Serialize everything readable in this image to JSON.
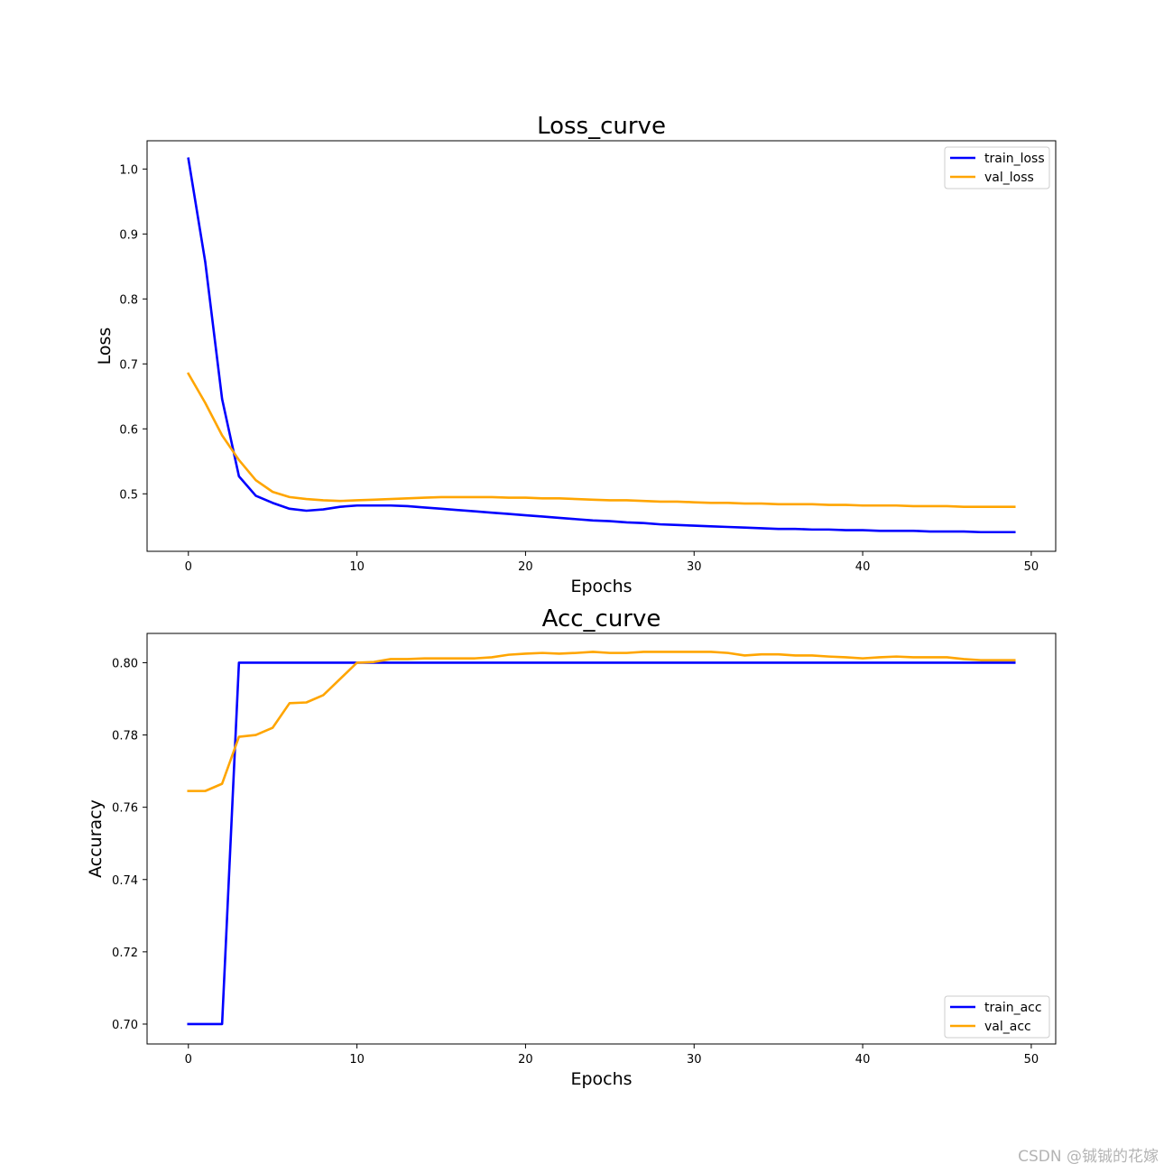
{
  "watermark": "CSDN @铖铖的花嫁",
  "colors": {
    "train": "#0000ff",
    "val": "#ffa500",
    "axes": "#000000",
    "background": "#ffffff"
  },
  "chart_data": [
    {
      "type": "line",
      "title": "Loss_curve",
      "xlabel": "Epochs",
      "ylabel": "Loss",
      "xlim": [
        -2.45,
        51.45
      ],
      "ylim": [
        0.4115,
        1.0435
      ],
      "xticks": [
        0,
        10,
        20,
        30,
        40,
        50
      ],
      "xtick_labels": [
        "0",
        "10",
        "20",
        "30",
        "40",
        "50"
      ],
      "yticks": [
        0.5,
        0.6,
        0.7,
        0.8,
        0.9,
        1.0
      ],
      "ytick_labels": [
        "0.5",
        "0.6",
        "0.7",
        "0.8",
        "0.9",
        "1.0"
      ],
      "grid": false,
      "legend_position": "upper right",
      "x": [
        0,
        1,
        2,
        3,
        4,
        5,
        6,
        7,
        8,
        9,
        10,
        11,
        12,
        13,
        14,
        15,
        16,
        17,
        18,
        19,
        20,
        21,
        22,
        23,
        24,
        25,
        26,
        27,
        28,
        29,
        30,
        31,
        32,
        33,
        34,
        35,
        36,
        37,
        38,
        39,
        40,
        41,
        42,
        43,
        44,
        45,
        46,
        47,
        48,
        49
      ],
      "series": [
        {
          "name": "train_loss",
          "color": "#0000ff",
          "values": [
            1.016,
            0.857,
            0.646,
            0.527,
            0.497,
            0.486,
            0.477,
            0.474,
            0.476,
            0.48,
            0.482,
            0.482,
            0.482,
            0.481,
            0.479,
            0.477,
            0.475,
            0.473,
            0.471,
            0.469,
            0.467,
            0.465,
            0.463,
            0.461,
            0.459,
            0.458,
            0.456,
            0.455,
            0.453,
            0.452,
            0.451,
            0.45,
            0.449,
            0.448,
            0.447,
            0.446,
            0.446,
            0.445,
            0.445,
            0.444,
            0.444,
            0.443,
            0.443,
            0.443,
            0.442,
            0.442,
            0.442,
            0.441,
            0.441,
            0.441
          ]
        },
        {
          "name": "val_loss",
          "color": "#ffa500",
          "values": [
            0.685,
            0.64,
            0.59,
            0.552,
            0.521,
            0.503,
            0.495,
            0.492,
            0.49,
            0.489,
            0.49,
            0.491,
            0.492,
            0.493,
            0.494,
            0.495,
            0.495,
            0.495,
            0.495,
            0.494,
            0.494,
            0.493,
            0.493,
            0.492,
            0.491,
            0.49,
            0.49,
            0.489,
            0.488,
            0.488,
            0.487,
            0.486,
            0.486,
            0.485,
            0.485,
            0.484,
            0.484,
            0.484,
            0.483,
            0.483,
            0.482,
            0.482,
            0.482,
            0.481,
            0.481,
            0.481,
            0.48,
            0.48,
            0.48,
            0.48
          ]
        }
      ]
    },
    {
      "type": "line",
      "title": "Acc_curve",
      "xlabel": "Epochs",
      "ylabel": "Accuracy",
      "xlim": [
        -2.45,
        51.45
      ],
      "ylim": [
        0.6945,
        0.8081
      ],
      "xticks": [
        0,
        10,
        20,
        30,
        40,
        50
      ],
      "xtick_labels": [
        "0",
        "10",
        "20",
        "30",
        "40",
        "50"
      ],
      "yticks": [
        0.7,
        0.72,
        0.74,
        0.76,
        0.78,
        0.8
      ],
      "ytick_labels": [
        "0.70",
        "0.72",
        "0.74",
        "0.76",
        "0.78",
        "0.80"
      ],
      "grid": false,
      "legend_position": "lower right",
      "x": [
        0,
        1,
        2,
        3,
        4,
        5,
        6,
        7,
        8,
        9,
        10,
        11,
        12,
        13,
        14,
        15,
        16,
        17,
        18,
        19,
        20,
        21,
        22,
        23,
        24,
        25,
        26,
        27,
        28,
        29,
        30,
        31,
        32,
        33,
        34,
        35,
        36,
        37,
        38,
        39,
        40,
        41,
        42,
        43,
        44,
        45,
        46,
        47,
        48,
        49
      ],
      "series": [
        {
          "name": "train_acc",
          "color": "#0000ff",
          "values": [
            0.7,
            0.7,
            0.7,
            0.8,
            0.8,
            0.8,
            0.8,
            0.8,
            0.8,
            0.8,
            0.8,
            0.8,
            0.8,
            0.8,
            0.8,
            0.8,
            0.8,
            0.8,
            0.8,
            0.8,
            0.8,
            0.8,
            0.8,
            0.8,
            0.8,
            0.8,
            0.8,
            0.8,
            0.8,
            0.8,
            0.8,
            0.8,
            0.8,
            0.8,
            0.8,
            0.8,
            0.8,
            0.8,
            0.8,
            0.8,
            0.8,
            0.8,
            0.8,
            0.8,
            0.8,
            0.8,
            0.8,
            0.8,
            0.8,
            0.8
          ]
        },
        {
          "name": "val_acc",
          "color": "#ffa500",
          "values": [
            0.7645,
            0.7645,
            0.7665,
            0.7795,
            0.78,
            0.782,
            0.7888,
            0.789,
            0.791,
            0.7955,
            0.8,
            0.8002,
            0.801,
            0.801,
            0.8012,
            0.8012,
            0.8012,
            0.8012,
            0.8015,
            0.8022,
            0.8025,
            0.8027,
            0.8025,
            0.8027,
            0.803,
            0.8027,
            0.8027,
            0.803,
            0.803,
            0.803,
            0.803,
            0.803,
            0.8027,
            0.802,
            0.8023,
            0.8023,
            0.802,
            0.802,
            0.8017,
            0.8015,
            0.8012,
            0.8015,
            0.8017,
            0.8015,
            0.8015,
            0.8015,
            0.801,
            0.8007,
            0.8007,
            0.8007
          ]
        }
      ]
    }
  ]
}
